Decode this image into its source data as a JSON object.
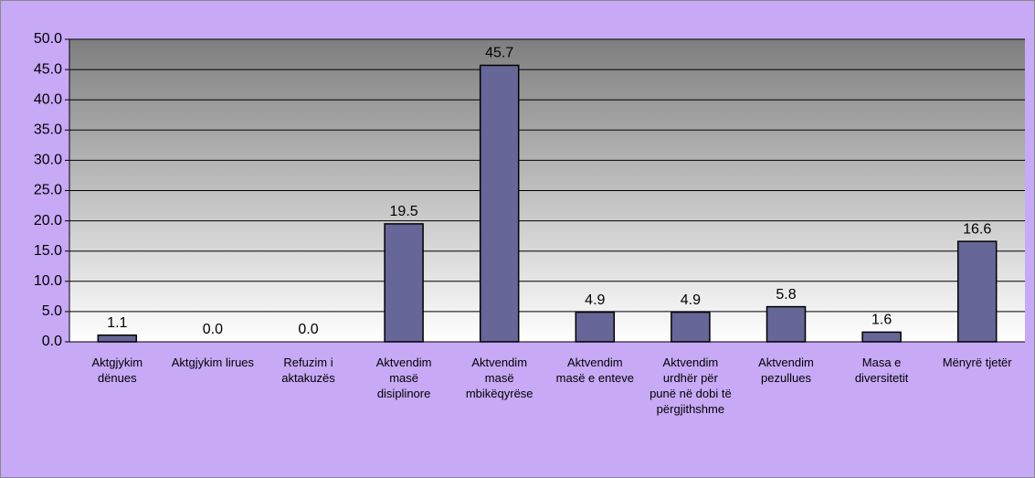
{
  "chart_data": {
    "type": "bar",
    "categories": [
      "Aktgjykim dënues",
      "Aktgjykim lirues",
      "Refuzim i aktakuzës",
      "Aktvendim masë disiplinore",
      "Aktvendim masë mbikëqyrëse",
      "Aktvendim masë e enteve",
      "Aktvendim urdhër për punë në dobi të përgjithshme",
      "Aktvendim pezullues",
      "Masa e diversitetit",
      "Mënyrë tjetër"
    ],
    "values": [
      1.1,
      0,
      0,
      19.5,
      45.7,
      4.9,
      4.9,
      5.8,
      1.6,
      16.6
    ],
    "value_labels": [
      "1.1",
      "0.0",
      "0.0",
      "19.5",
      "45.7",
      "4.9",
      "4.9",
      "5.8",
      "1.6",
      "16.6"
    ],
    "color": "#666699",
    "ylim": [
      0,
      50
    ],
    "yticks": [
      {
        "value": 0,
        "label": "0.0"
      },
      {
        "value": 5,
        "label": "5.0"
      },
      {
        "value": 10,
        "label": "10.0"
      },
      {
        "value": 15,
        "label": "15.0"
      },
      {
        "value": 20,
        "label": "20.0"
      },
      {
        "value": 25,
        "label": "25.0"
      },
      {
        "value": 30,
        "label": "30.0"
      },
      {
        "value": 35,
        "label": "35.0"
      },
      {
        "value": 40,
        "label": "40.0"
      },
      {
        "value": 45,
        "label": "45.0"
      },
      {
        "value": 50,
        "label": "50.0"
      }
    ],
    "grid": true
  }
}
